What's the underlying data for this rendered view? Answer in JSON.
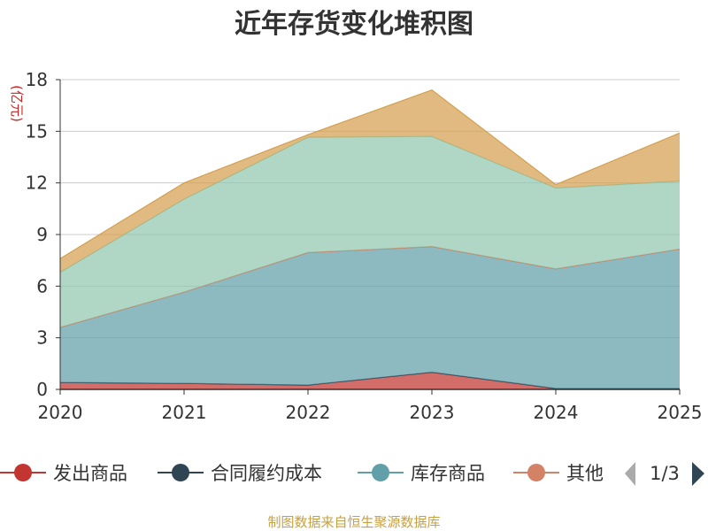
{
  "chart_data": {
    "type": "area",
    "stacked": true,
    "title": "近年存货变化堆积图",
    "ylabel": "(亿元)",
    "x": [
      "2020",
      "2021",
      "2022",
      "2023",
      "2024",
      "2025"
    ],
    "ylim": [
      0,
      18
    ],
    "yticks": [
      0,
      3,
      6,
      9,
      12,
      15,
      18
    ],
    "grid": true,
    "series": [
      {
        "name": "发出商品",
        "color": "#c23531",
        "values": [
          0.4,
          0.35,
          0.25,
          1.0,
          0.05,
          0.05
        ]
      },
      {
        "name": "合同履约成本",
        "color": "#2f4554",
        "values": [
          0.0,
          0.0,
          0.0,
          0.0,
          0.0,
          0.0
        ]
      },
      {
        "name": "库存商品",
        "color": "#61a0a8",
        "values": [
          3.2,
          5.3,
          7.7,
          7.3,
          6.95,
          8.1
        ]
      },
      {
        "name": "其他",
        "color": "#d48265",
        "values": [
          0.0,
          0.0,
          0.0,
          0.0,
          0.0,
          0.0
        ]
      },
      {
        "name": "",
        "color": "#91c7ae",
        "values": [
          3.2,
          5.4,
          6.7,
          6.4,
          4.7,
          3.95
        ]
      },
      {
        "name": "",
        "color": "#d4a04f",
        "values": [
          0.8,
          0.95,
          0.15,
          2.7,
          0.2,
          2.8
        ]
      }
    ],
    "legend": {
      "position": "bottom",
      "visible_items": [
        "发出商品",
        "合同履约成本",
        "库存商品",
        "其他"
      ],
      "page": "1/3"
    },
    "source": "制图数据来自恒生聚源数据库"
  }
}
